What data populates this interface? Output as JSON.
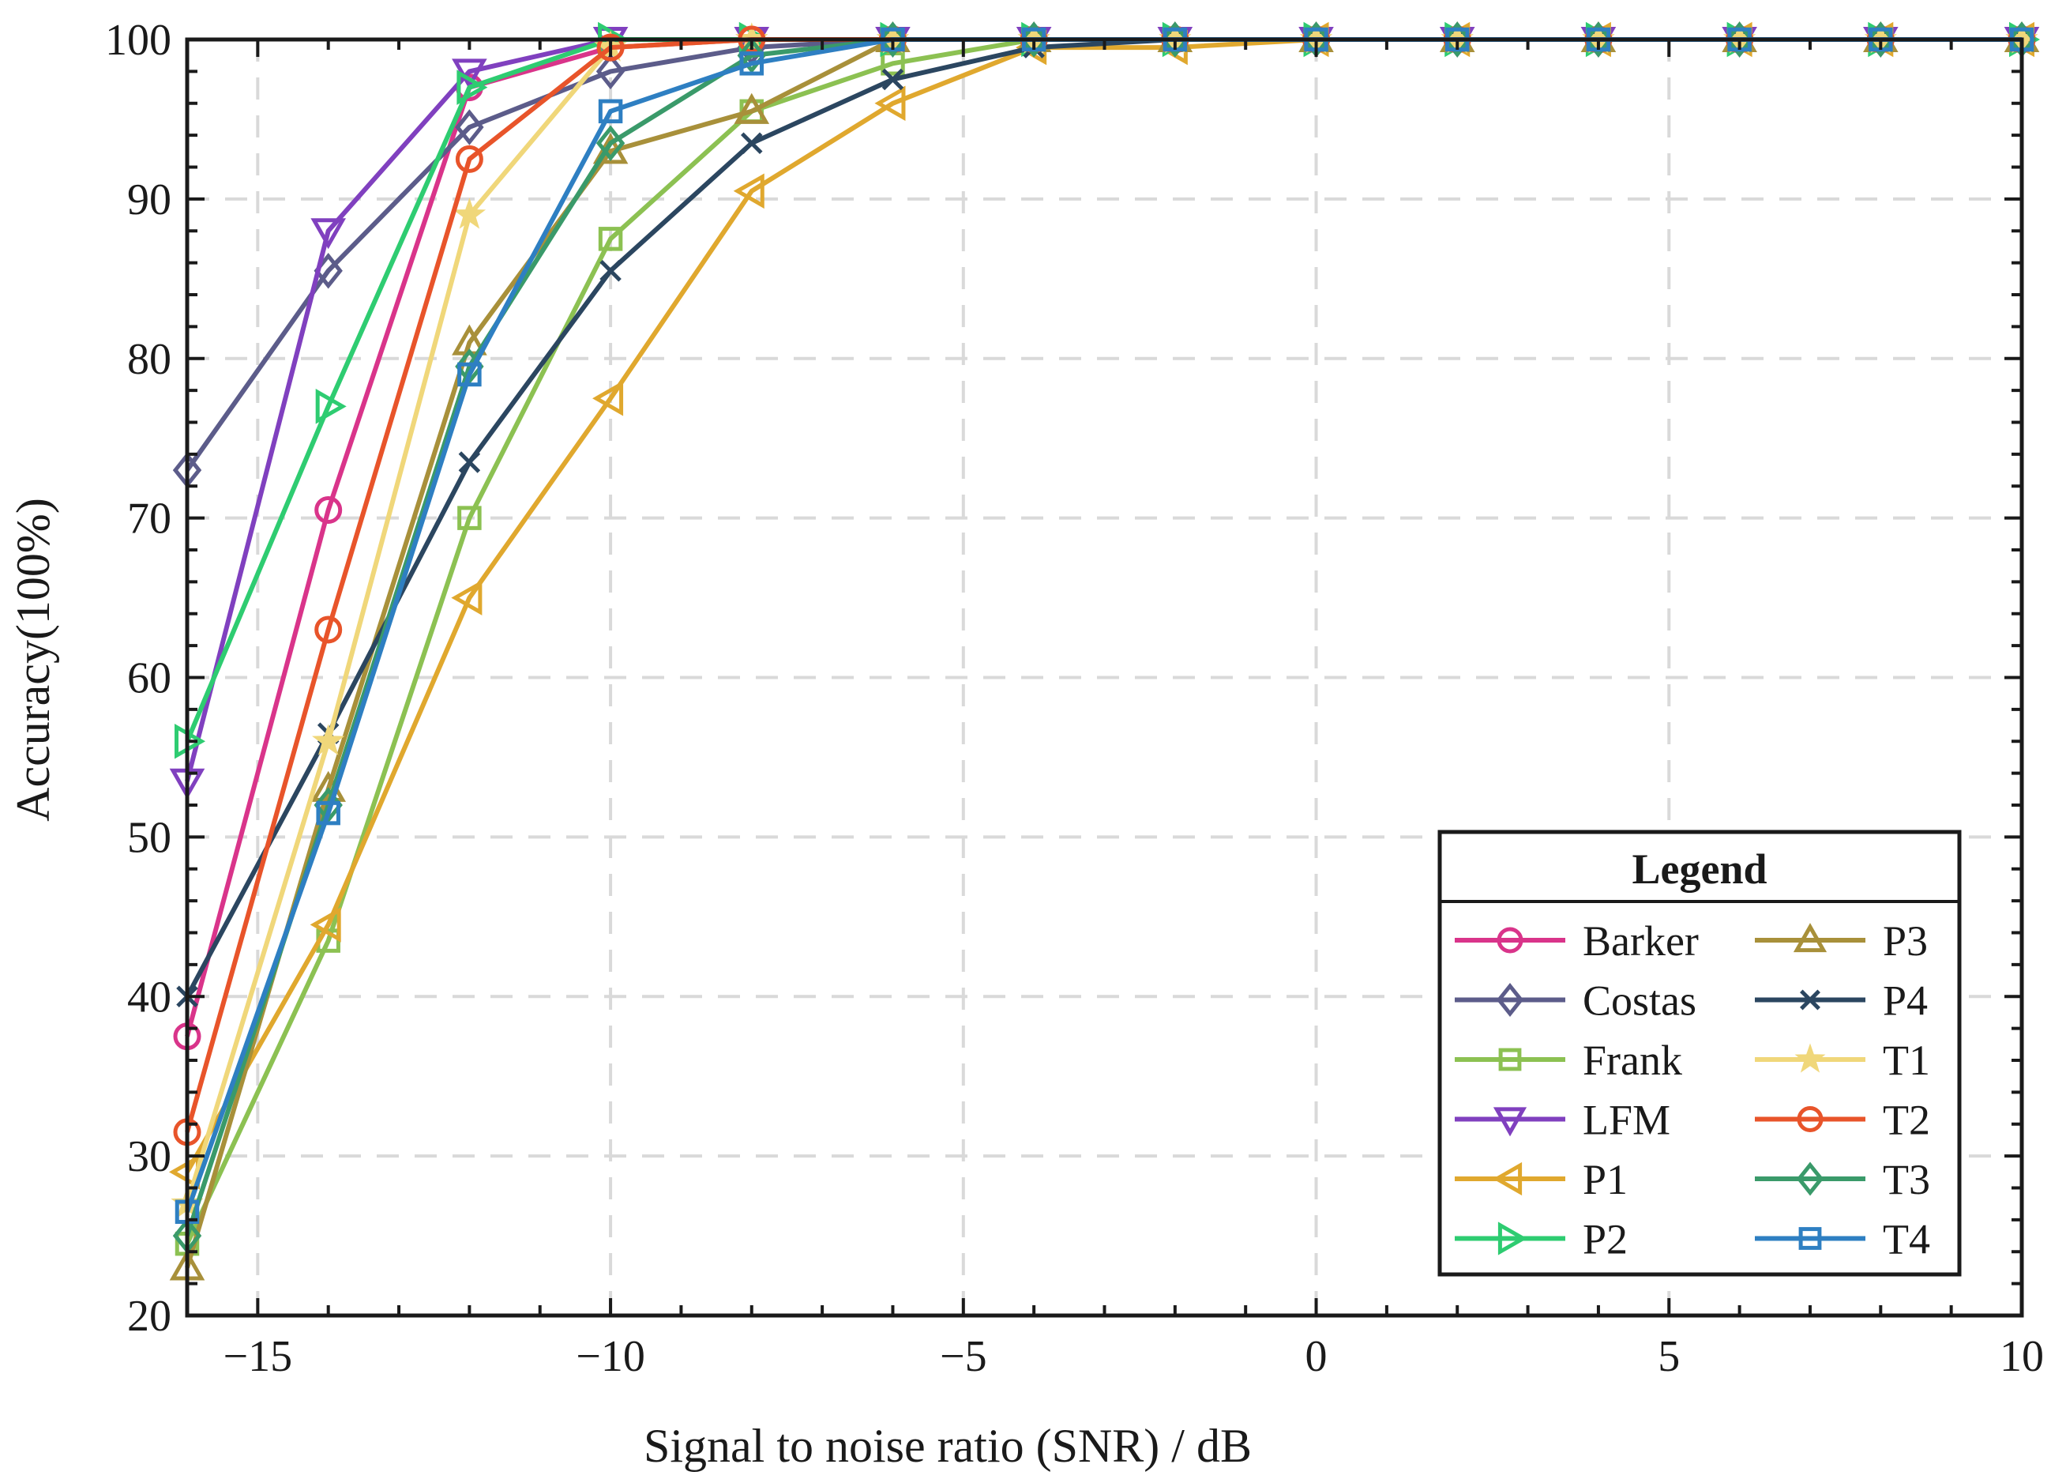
{
  "chart_data": {
    "type": "line",
    "title": "",
    "xlabel": "Signal to noise ratio (SNR) / dB",
    "ylabel": "Accuracy(100%)",
    "xlim": [
      -16,
      10
    ],
    "ylim": [
      20,
      100
    ],
    "xticks": [
      -15,
      -10,
      -5,
      0,
      5,
      10
    ],
    "xtick_labels": [
      "−15",
      "−10",
      "−5",
      "0",
      "5",
      "10"
    ],
    "yticks": [
      20,
      30,
      40,
      50,
      60,
      70,
      80,
      90,
      100
    ],
    "ytick_labels": [
      "20",
      "30",
      "40",
      "50",
      "60",
      "70",
      "80",
      "90",
      "100"
    ],
    "grid": true,
    "legend_title": "Legend",
    "legend_position": "bottom-right",
    "x": [
      -16,
      -14,
      -12,
      -10,
      -8,
      -6,
      -4,
      -2,
      0,
      2,
      4,
      6,
      8,
      10
    ],
    "series": [
      {
        "name": "Barker",
        "color": "#d9348a",
        "marker": "circle",
        "values": [
          37.5,
          70.5,
          97,
          99.5,
          100,
          100,
          100,
          100,
          100,
          100,
          100,
          100,
          100,
          100
        ]
      },
      {
        "name": "Costas",
        "color": "#5c5c8a",
        "marker": "diamond",
        "values": [
          73,
          85.5,
          94.5,
          98,
          99.5,
          100,
          100,
          100,
          100,
          100,
          100,
          100,
          100,
          100
        ]
      },
      {
        "name": "Frank",
        "color": "#8cc152",
        "marker": "square",
        "values": [
          24.5,
          43.5,
          70,
          87.5,
          95.5,
          98.5,
          100,
          100,
          100,
          100,
          100,
          100,
          100,
          100
        ]
      },
      {
        "name": "LFM",
        "color": "#8040bf",
        "marker": "tri-down",
        "values": [
          53.5,
          88,
          98,
          100,
          100,
          100,
          100,
          100,
          100,
          100,
          100,
          100,
          100,
          100
        ]
      },
      {
        "name": "P1",
        "color": "#e0a82e",
        "marker": "tri-left",
        "values": [
          29,
          44.5,
          65,
          77.5,
          90.5,
          96,
          99.5,
          99.5,
          100,
          100,
          100,
          100,
          100,
          100
        ]
      },
      {
        "name": "P2",
        "color": "#2ecc71",
        "marker": "tri-right",
        "values": [
          56,
          77,
          97,
          100,
          100,
          100,
          100,
          100,
          100,
          100,
          100,
          100,
          100,
          100
        ]
      },
      {
        "name": "P3",
        "color": "#a8903a",
        "marker": "tri-up",
        "values": [
          23,
          53,
          81,
          93,
          95.5,
          100,
          100,
          100,
          100,
          100,
          100,
          100,
          100,
          100
        ]
      },
      {
        "name": "P4",
        "color": "#2b4660",
        "marker": "x",
        "values": [
          40,
          56.5,
          73.5,
          85.5,
          93.5,
          97.5,
          99.5,
          100,
          100,
          100,
          100,
          100,
          100,
          100
        ]
      },
      {
        "name": "T1",
        "color": "#f0d77a",
        "marker": "star",
        "values": [
          27,
          56,
          89,
          99.5,
          100,
          100,
          100,
          100,
          100,
          100,
          100,
          100,
          100,
          100
        ]
      },
      {
        "name": "T2",
        "color": "#e8542a",
        "marker": "circle",
        "values": [
          31.5,
          63,
          92.5,
          99.5,
          100,
          100,
          100,
          100,
          100,
          100,
          100,
          100,
          100,
          100
        ]
      },
      {
        "name": "T3",
        "color": "#3a9a6a",
        "marker": "diamond",
        "values": [
          25,
          52,
          79.5,
          93.5,
          99,
          100,
          100,
          100,
          100,
          100,
          100,
          100,
          100,
          100
        ]
      },
      {
        "name": "T4",
        "color": "#2e7fc2",
        "marker": "square",
        "values": [
          26.5,
          51.5,
          79,
          95.5,
          98.5,
          100,
          100,
          100,
          100,
          100,
          100,
          100,
          100,
          100
        ]
      }
    ]
  }
}
